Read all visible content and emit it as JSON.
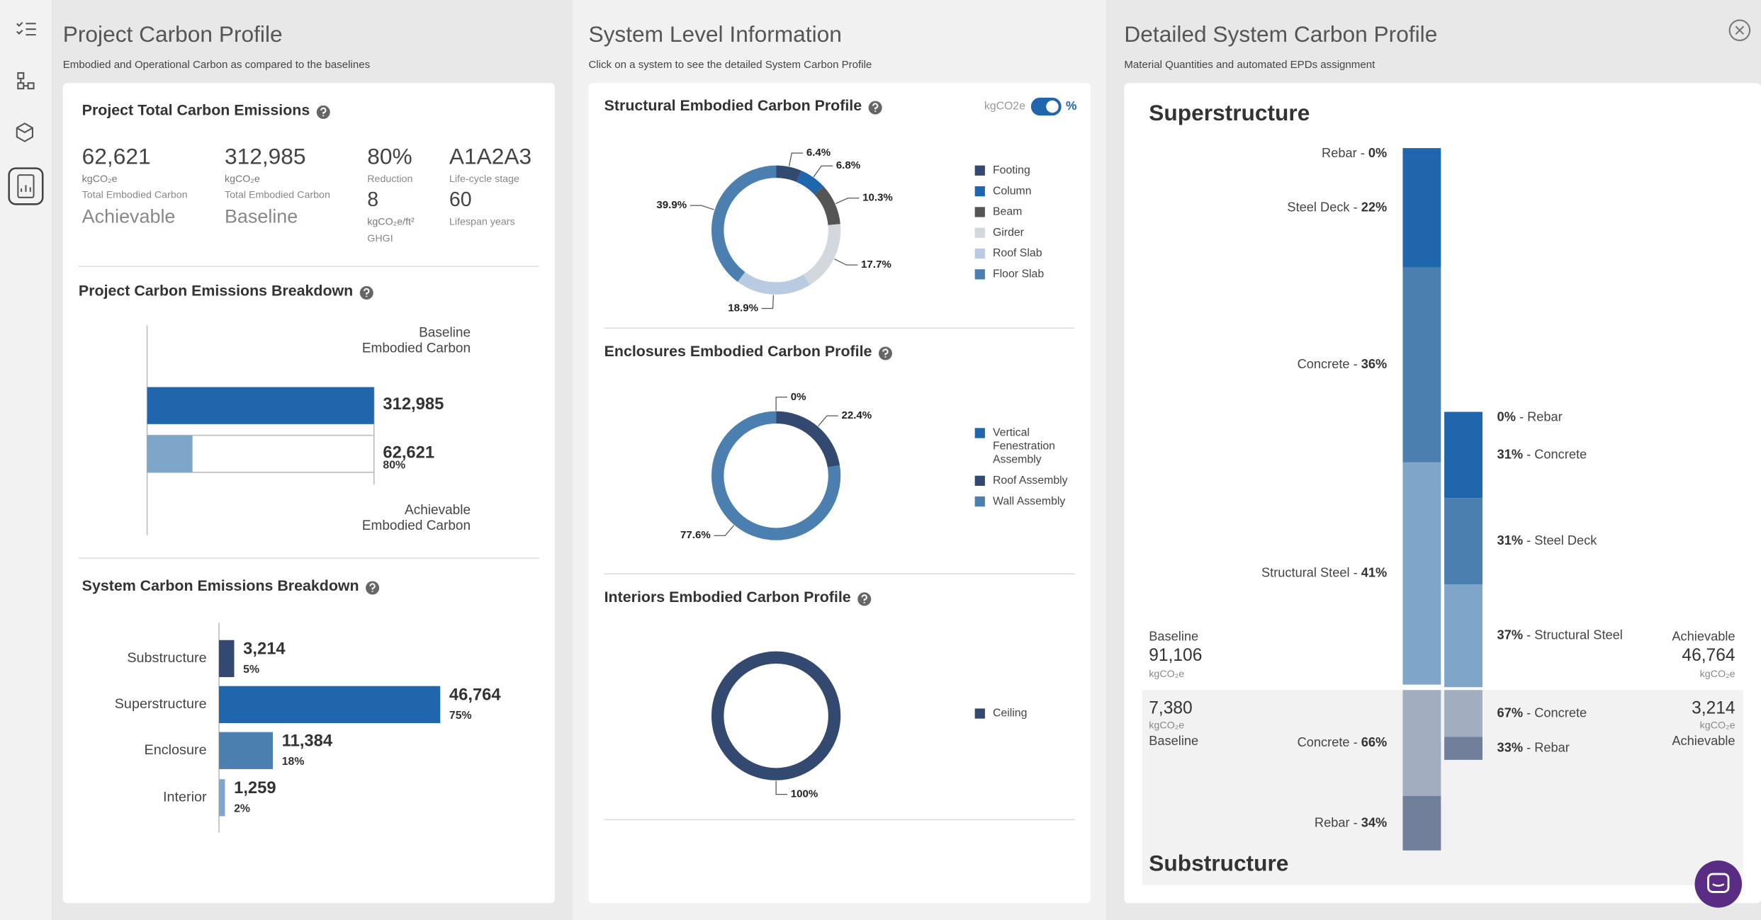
{
  "project": {
    "title": "Project Carbon Profile",
    "subtitle": "Embodied and Operational Carbon as compared to the baselines",
    "total": {
      "title": "Project Total Carbon Emissions",
      "metrics": [
        {
          "value": "62,621",
          "unit": "kgCO₂e",
          "label": "Total Embodied Carbon",
          "tag": "Achievable"
        },
        {
          "value": "312,985",
          "unit": "kgCO₂e",
          "label": "Total Embodied Carbon",
          "tag": "Baseline"
        },
        {
          "value": "80%",
          "label": "Reduction"
        },
        {
          "value": "A1A2A3",
          "label": "Life-cycle stage"
        }
      ],
      "secondary_metrics": [
        {
          "value": "8",
          "unit": "kgCO₂e/ft²",
          "label": "GHGI"
        },
        {
          "value": "60",
          "label": "Lifespan years"
        }
      ]
    },
    "breakdown": {
      "title": "Project Carbon Emissions Breakdown",
      "type": "bar",
      "categories": [
        [
          "Baseline",
          "Embodied Carbon"
        ],
        [
          "Achievable",
          "Embodied Carbon"
        ]
      ],
      "values": [
        312985,
        62621
      ],
      "value_labels": [
        "312,985",
        "62,621"
      ],
      "reduction_label": "80%",
      "colors": [
        "#1f66ad",
        "#7fa6c8"
      ]
    },
    "systems": {
      "title": "System Carbon Emissions Breakdown",
      "type": "bar",
      "categories": [
        "Substructure",
        "Superstructure",
        "Enclosure",
        "Interior"
      ],
      "values": [
        3214,
        46764,
        11384,
        1259
      ],
      "value_labels": [
        "3,214",
        "46,764",
        "11,384",
        "1,259"
      ],
      "share_labels": [
        "5%",
        "75%",
        "18%",
        "2%"
      ],
      "colors": [
        "#33496f",
        "#1f66ad",
        "#4b7fb0",
        "#7fa6c8"
      ]
    }
  },
  "system_info": {
    "title": "System Level Information",
    "subtitle": "Click on a system to see the detailed System Carbon Profile",
    "toggle": {
      "left": "kgCO2e",
      "right": "%"
    },
    "profiles": [
      {
        "title": "Structural Embodied Carbon Profile",
        "type": "donut",
        "categories": [
          "Footing",
          "Column",
          "Beam",
          "Girder",
          "Roof Slab",
          "Floor Slab"
        ],
        "values": [
          6.4,
          6.8,
          10.3,
          17.7,
          18.9,
          39.9
        ],
        "value_labels": [
          "6.4%",
          "6.8%",
          "10.3%",
          "17.7%",
          "18.9%",
          "39.9%"
        ],
        "colors": [
          "#33496f",
          "#1f66ad",
          "#555555",
          "#d3d7de",
          "#b8cbe0",
          "#4b7fb0"
        ]
      },
      {
        "title": "Enclosures Embodied Carbon Profile",
        "type": "donut",
        "categories": [
          "Vertical Fenestration Assembly",
          "Roof Assembly",
          "Wall Assembly"
        ],
        "values": [
          0,
          22.4,
          77.6
        ],
        "value_labels": [
          "0%",
          "22.4%",
          "77.6%"
        ],
        "colors": [
          "#1f66ad",
          "#33496f",
          "#4b7fb0"
        ]
      },
      {
        "title": "Interiors Embodied Carbon Profile",
        "type": "donut",
        "categories": [
          "Ceiling"
        ],
        "values": [
          100
        ],
        "value_labels": [
          "100%"
        ],
        "colors": [
          "#33496f"
        ]
      }
    ]
  },
  "detail": {
    "title": "Detailed System Carbon Profile",
    "subtitle": "Material Quantities and automated EPDs assignment",
    "separator": " - ",
    "sections": [
      {
        "title": "Superstructure",
        "baseline": {
          "label": "Baseline",
          "total": 91106,
          "total_label": "91,106",
          "unit": "kgCO₂e",
          "materials": {
            "names": [
              "Rebar",
              "Steel Deck",
              "Concrete",
              "Structural Steel"
            ],
            "values": [
              0,
              22,
              36,
              41
            ],
            "value_labels": [
              "0%",
              "22%",
              "36%",
              "41%"
            ],
            "colors": [
              "#1f66ad",
              "#1f66ad",
              "#4b7fb0",
              "#7fa6c8"
            ]
          }
        },
        "achievable": {
          "label": "Achievable",
          "total": 46764,
          "total_label": "46,764",
          "unit": "kgCO₂e",
          "materials": {
            "names": [
              "Rebar",
              "Concrete",
              "Steel Deck",
              "Structural Steel"
            ],
            "values": [
              0,
              31,
              31,
              37
            ],
            "value_labels": [
              "0%",
              "31%",
              "31%",
              "37%"
            ],
            "colors": [
              "#33496f",
              "#1f66ad",
              "#4b7fb0",
              "#7fa6c8"
            ]
          }
        }
      },
      {
        "title": "Substructure",
        "baseline": {
          "label": "Baseline",
          "total": 7380,
          "total_label": "7,380",
          "unit": "kgCO₂e",
          "materials": {
            "names": [
              "Concrete",
              "Rebar"
            ],
            "values": [
              66,
              34
            ],
            "value_labels": [
              "66%",
              "34%"
            ],
            "colors": [
              "#a2adbf",
              "#717f9a"
            ]
          }
        },
        "achievable": {
          "label": "Achievable",
          "total": 3214,
          "total_label": "3,214",
          "unit": "kgCO₂e",
          "materials": {
            "names": [
              "Concrete",
              "Rebar"
            ],
            "values": [
              67,
              33
            ],
            "value_labels": [
              "67%",
              "33%"
            ],
            "colors": [
              "#a2adbf",
              "#717f9a"
            ]
          }
        }
      }
    ]
  }
}
